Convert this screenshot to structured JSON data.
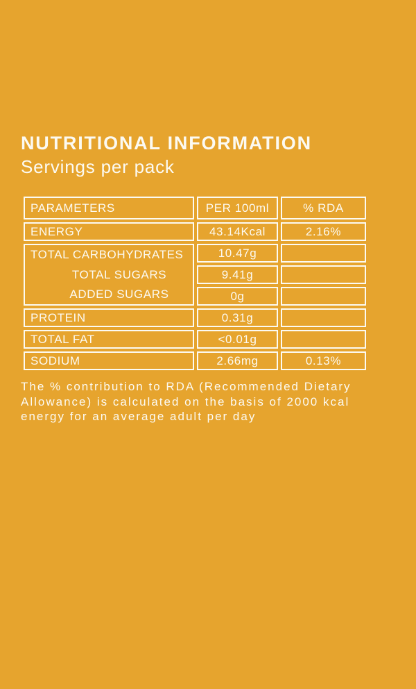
{
  "colors": {
    "background": "#E6A42E",
    "foreground": "#FCFAF2"
  },
  "header": {
    "title": "NUTRITIONAL INFORMATION",
    "subtitle": "Servings per pack"
  },
  "table": {
    "columns": [
      "PARAMETERS",
      "PER 100ml",
      "% RDA"
    ],
    "rows": [
      {
        "parameter": "ENERGY",
        "per_100ml": "43.14Kcal",
        "rda": "2.16%"
      },
      {
        "parameter": "TOTAL CARBOHYDRATES",
        "per_100ml": "10.47g",
        "rda": ""
      },
      {
        "parameter": "TOTAL SUGARS",
        "per_100ml": "9.41g",
        "rda": ""
      },
      {
        "parameter": "ADDED SUGARS",
        "per_100ml": "0g",
        "rda": ""
      },
      {
        "parameter": "PROTEIN",
        "per_100ml": "0.31g",
        "rda": ""
      },
      {
        "parameter": "TOTAL FAT",
        "per_100ml": "<0.01g",
        "rda": ""
      },
      {
        "parameter": "SODIUM",
        "per_100ml": "2.66mg",
        "rda": "0.13%"
      }
    ]
  },
  "footnote": {
    "lines": [
      "The % contribution to RDA (Recommended Dietary",
      "Allowance) is calculated on the basis of 2000 kcal",
      "energy for an average adult per day"
    ]
  }
}
